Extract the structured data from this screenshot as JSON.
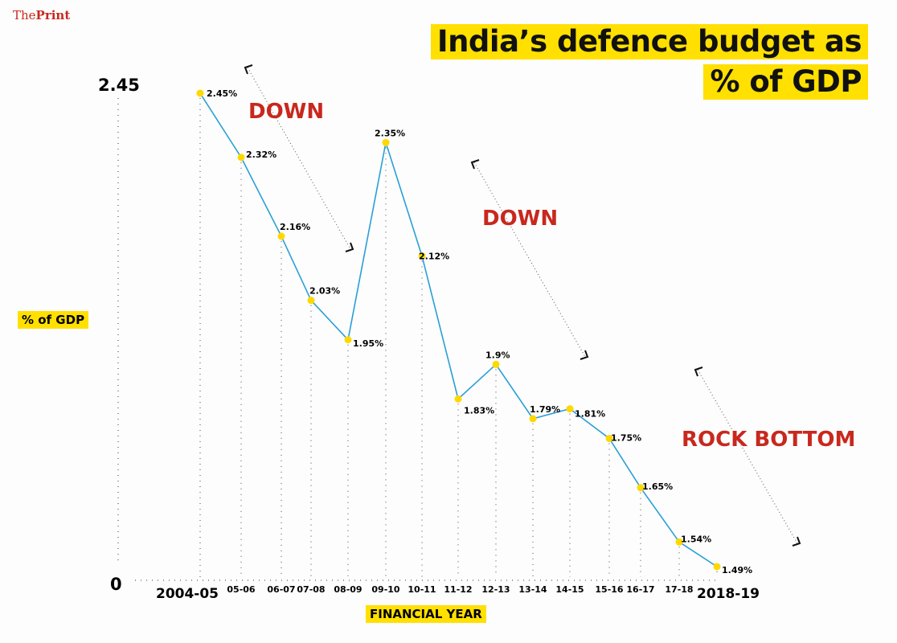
{
  "brand": {
    "logo_thin": "The",
    "logo_bold": "Print"
  },
  "chart_data": {
    "type": "line",
    "title_line1": "India’s defence budget as",
    "title_line2": "% of GDP",
    "xlabel": "FINANCIAL YEAR",
    "ylabel": "% of GDP",
    "y_ticks": [
      "2.45",
      "0"
    ],
    "categories": [
      "2004-05",
      "05-06",
      "06-07",
      "07-08",
      "08-09",
      "09-10",
      "10-11",
      "11-12",
      "12-13",
      "13-14",
      "14-15",
      "15-16",
      "16-17",
      "17-18",
      "2018-19"
    ],
    "values": [
      2.45,
      2.32,
      2.16,
      2.03,
      1.95,
      2.35,
      2.12,
      1.83,
      1.9,
      1.79,
      1.81,
      1.75,
      1.65,
      1.54,
      1.49
    ],
    "data_labels": [
      "2.45%",
      "2.32%",
      "2.16%",
      "2.03%",
      "1.95%",
      "2.35%",
      "2.12%",
      "1.83%",
      "1.9%",
      "1.79%",
      "1.81%",
      "1.75%",
      "1.65%",
      "1.54%",
      "1.49%"
    ],
    "annotations": [
      "DOWN",
      "DOWN",
      "ROCK BOTTOM"
    ],
    "colors": {
      "line": "#2a9fd6",
      "marker": "#ffd800",
      "annotation": "#c8281e",
      "highlight": "#ffe000"
    }
  }
}
